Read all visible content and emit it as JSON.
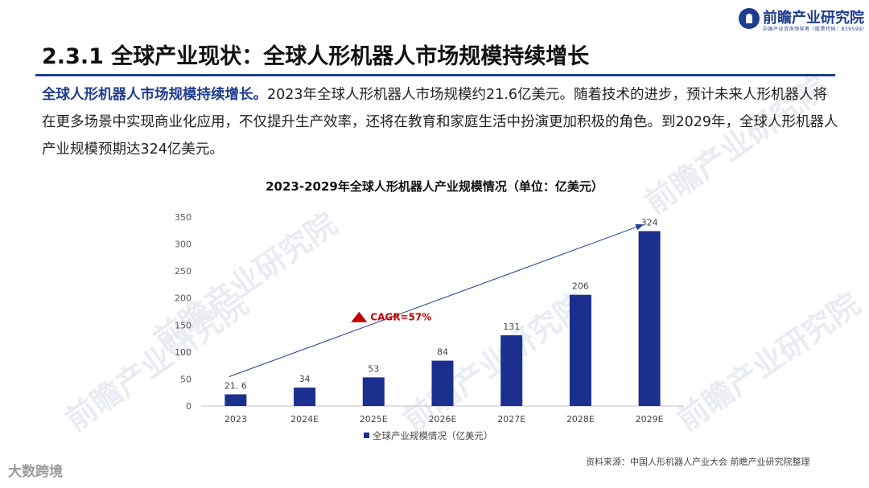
{
  "header": {
    "logo_name": "前瞻产业研究院",
    "logo_sub": "中国产业咨询领导者（股票代码：839599）",
    "title": "2.3.1 全球产业现状：全球人形机器人市场规模持续增长"
  },
  "body": {
    "lead": "全球人形机器人市场规模持续增长。",
    "text": "2023年全球人形机器人市场规模约21.6亿美元。随着技术的进步，预计未来人形机器人将在更多场景中实现商业化应用，不仅提升生产效率，还将在教育和家庭生活中扮演更加积极的角色。到2029年，全球人形机器人产业规模预期达324亿美元。"
  },
  "chart_data": {
    "type": "bar",
    "title": "2023-2029年全球人形机器人产业规模情况（单位：亿美元）",
    "categories": [
      "2023",
      "2024E",
      "2025E",
      "2026E",
      "2027E",
      "2028E",
      "2029E"
    ],
    "series": [
      {
        "name": "全球产业规模情况（亿美元）",
        "values": [
          21.6,
          34,
          53,
          84,
          131,
          206,
          324
        ]
      }
    ],
    "data_labels": [
      "21. 6",
      "34",
      "53",
      "84",
      "131",
      "206",
      "324"
    ],
    "ylim": [
      0,
      350
    ],
    "yticks": [
      0,
      50,
      100,
      150,
      200,
      250,
      300,
      350
    ],
    "bar_color": "#1b2f8f",
    "annotation": "CAGR=57%",
    "annotation_color": "#c00000",
    "legend_position": "bottom",
    "grid": false
  },
  "footer": {
    "source": "资料来源：中国人形机器人产业大会 前瞻产业研究院整理",
    "badge": "大数跨境"
  },
  "watermark": "前瞻产业研究院"
}
